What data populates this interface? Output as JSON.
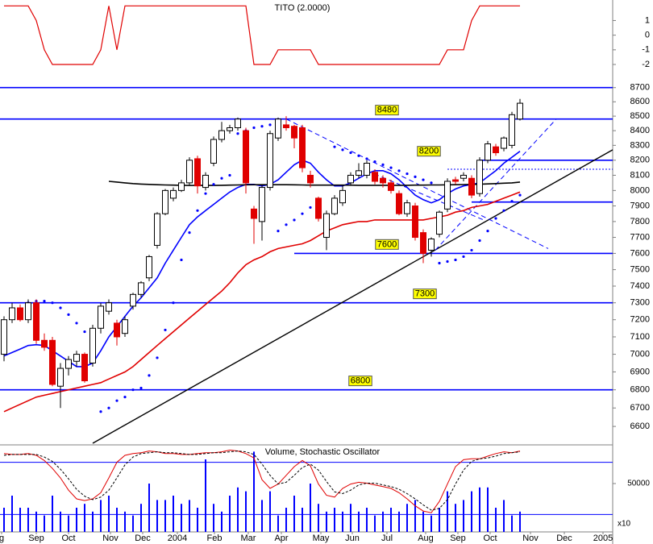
{
  "chart_data": [
    {
      "type": "line",
      "title": "TITO (2.0000)",
      "color": "#e00000",
      "values": [
        2,
        2,
        2,
        2,
        1,
        -1,
        -2,
        -2,
        -2,
        -2,
        -2,
        -2,
        -1,
        2,
        -1,
        2,
        2,
        2,
        2,
        2,
        2,
        2,
        2,
        2,
        2,
        2,
        2,
        2,
        2,
        2,
        2,
        -2,
        -2,
        -2,
        -1,
        -1,
        -1,
        -1,
        -1,
        -2,
        -2,
        -2,
        -2,
        -2,
        -2,
        -2,
        -2,
        -2,
        -2,
        -2,
        -2,
        -2,
        -2,
        -2,
        -2,
        -1,
        -1,
        -1,
        1,
        2,
        2,
        2,
        2,
        2,
        2
      ],
      "xlim": [
        -0.5,
        75.5
      ],
      "ylim": [
        -3.1,
        2.4
      ],
      "yticks": [
        1,
        0,
        -1,
        -2
      ]
    },
    {
      "type": "candlestick",
      "log_scale": true,
      "up_color": "#ffffff",
      "down_color": "#e00000",
      "open": [
        7000,
        7200,
        7270,
        7200,
        7300,
        7080,
        7080,
        6820,
        6920,
        6960,
        7000,
        6950,
        7150,
        7250,
        7180,
        7120,
        7280,
        7350,
        7450,
        7650,
        7850,
        7950,
        8000,
        8050,
        8210,
        8020,
        8180,
        8340,
        8400,
        8420,
        8400,
        7880,
        7800,
        8020,
        8350,
        8440,
        8430,
        8420,
        8100,
        7950,
        7700,
        7850,
        7920,
        8050,
        8100,
        8100,
        8120,
        8080,
        8050,
        7980,
        7850,
        7900,
        7730,
        7620,
        7720,
        7880,
        8070,
        8080,
        8080,
        7980,
        8200,
        8290,
        8280,
        8300,
        8480
      ],
      "high": [
        7220,
        7300,
        7290,
        7320,
        7320,
        7120,
        7100,
        6950,
        6990,
        7020,
        7010,
        7170,
        7300,
        7320,
        7200,
        7220,
        7360,
        7430,
        7590,
        7860,
        8010,
        8020,
        8070,
        8220,
        8230,
        8120,
        8360,
        8460,
        8440,
        8490,
        8420,
        7900,
        8040,
        8400,
        8490,
        8500,
        8440,
        8440,
        8130,
        7960,
        7870,
        7970,
        8030,
        8120,
        8180,
        8200,
        8140,
        8100,
        8070,
        8000,
        7940,
        7920,
        7750,
        7700,
        7870,
        8080,
        8090,
        8120,
        8100,
        8220,
        8330,
        8310,
        8360,
        8530,
        8620
      ],
      "low": [
        6960,
        7180,
        7190,
        7180,
        7060,
        7020,
        6820,
        6700,
        6880,
        6930,
        6840,
        6930,
        7120,
        7230,
        7050,
        7100,
        7260,
        7330,
        7430,
        7630,
        7840,
        7930,
        7990,
        8030,
        7980,
        8000,
        8160,
        8320,
        8380,
        8400,
        7980,
        7660,
        7680,
        8000,
        8330,
        8400,
        8280,
        8120,
        8020,
        7800,
        7620,
        7840,
        7900,
        8030,
        8080,
        8080,
        8040,
        8020,
        7980,
        7840,
        7830,
        7680,
        7540,
        7580,
        7700,
        7860,
        8040,
        8060,
        7950,
        7960,
        8180,
        8230,
        8260,
        8280,
        8470
      ],
      "close": [
        7200,
        7270,
        7200,
        7300,
        7080,
        7040,
        6830,
        6920,
        6970,
        7000,
        6850,
        7150,
        7280,
        7300,
        7100,
        7200,
        7350,
        7420,
        7580,
        7850,
        8000,
        8000,
        8050,
        8200,
        8030,
        8100,
        8340,
        8400,
        8420,
        8480,
        8050,
        7820,
        8020,
        8380,
        8480,
        8420,
        8350,
        8150,
        8050,
        7820,
        7850,
        7950,
        8000,
        8100,
        8130,
        8180,
        8060,
        8050,
        8000,
        7850,
        7920,
        7700,
        7600,
        7690,
        7860,
        8060,
        8060,
        8100,
        7970,
        8200,
        8310,
        8250,
        8350,
        8510,
        8590
      ],
      "overlays": [
        {
          "color": "#0000ff",
          "values": [
            6990,
            7010,
            7030,
            7050,
            7055,
            7050,
            7020,
            6990,
            6960,
            6930,
            6930,
            6950,
            7020,
            7100,
            7160,
            7220,
            7280,
            7330,
            7390,
            7450,
            7540,
            7620,
            7700,
            7780,
            7830,
            7870,
            7910,
            7950,
            7990,
            8020,
            8040,
            8040,
            8030,
            8040,
            8070,
            8120,
            8170,
            8200,
            8180,
            8120,
            8070,
            8030,
            8030,
            8050,
            8080,
            8110,
            8130,
            8130,
            8110,
            8070,
            8020,
            7970,
            7940,
            7920,
            7940,
            7980,
            8010,
            8030,
            8040,
            8050,
            8090,
            8130,
            8180,
            8220,
            8260
          ]
        },
        {
          "color": "#e00000",
          "values": [
            6680,
            6700,
            6720,
            6740,
            6760,
            6770,
            6780,
            6790,
            6800,
            6810,
            6820,
            6830,
            6840,
            6860,
            6880,
            6900,
            6930,
            6970,
            7010,
            7050,
            7090,
            7130,
            7170,
            7210,
            7250,
            7290,
            7330,
            7370,
            7420,
            7480,
            7530,
            7560,
            7580,
            7610,
            7630,
            7640,
            7650,
            7660,
            7680,
            7710,
            7740,
            7760,
            7780,
            7790,
            7800,
            7800,
            7810,
            7810,
            7810,
            7810,
            7810,
            7810,
            7810,
            7820,
            7830,
            7840,
            7860,
            7870,
            7890,
            7900,
            7910,
            7930,
            7950,
            7970,
            7990
          ]
        },
        {
          "color": "#000000",
          "values": [
            null,
            null,
            null,
            null,
            null,
            null,
            null,
            null,
            null,
            null,
            null,
            null,
            null,
            8060,
            8055,
            8050,
            8045,
            8042,
            8040,
            8038,
            8036,
            8035,
            8034,
            8033,
            8033,
            8033,
            8033,
            8034,
            8035,
            8036,
            8037,
            8038,
            8038,
            8038,
            8038,
            8038,
            8037,
            8036,
            8035,
            8035,
            8035,
            8035,
            8035,
            8035,
            8034,
            8034,
            8034,
            8034,
            8034,
            8034,
            8034,
            8035,
            8035,
            8036,
            8036,
            8037,
            8038,
            8039,
            8040,
            8041,
            8043,
            8045,
            8048,
            8050,
            8055
          ]
        }
      ],
      "sar": {
        "color": "#0000ff",
        "values": [
          null,
          null,
          null,
          7300,
          7310,
          7310,
          7300,
          7270,
          7230,
          7180,
          7130,
          null,
          6680,
          6700,
          6740,
          6760,
          6800,
          6810,
          6880,
          6980,
          7140,
          7300,
          7560,
          7730,
          7870,
          7980,
          8040,
          8080,
          8100,
          8380,
          8400,
          8420,
          8430,
          8440,
          7740,
          7780,
          7810,
          7850,
          7890,
          7930,
          null,
          8290,
          8270,
          8250,
          8230,
          8210,
          8190,
          8170,
          8150,
          8130,
          8110,
          8090,
          8070,
          8050,
          7540,
          7550,
          7560,
          7580,
          7620,
          7680,
          7740,
          7820,
          7870,
          7930,
          7970
        ]
      },
      "levels": [
        {
          "value": 8700,
          "color": "#0000ff"
        },
        {
          "value": 8480,
          "label": "8480",
          "color": "#0000ff"
        },
        {
          "value": 8200,
          "label": "8200",
          "from": 59,
          "color": "#0000ff"
        },
        {
          "value": 8140,
          "from": 55,
          "color": "#0000ff",
          "dotted": true
        },
        {
          "value": 7925,
          "from": 58,
          "color": "#0000ff"
        },
        {
          "value": 7600,
          "label": "7600",
          "from": 36,
          "color": "#0000ff"
        },
        {
          "value": 7300,
          "label": "7300",
          "color": "#0000ff"
        },
        {
          "value": 6800,
          "label": "6800",
          "color": "#0000ff"
        }
      ],
      "trendlines": [
        {
          "x": [
            11,
            75.5
          ],
          "y": [
            6510,
            8270
          ],
          "color": "#000000"
        },
        {
          "x": [
            35,
            67.5
          ],
          "y": [
            8480,
            7630
          ],
          "color": "#0000ff",
          "dashed": true
        },
        {
          "x": [
            45,
            59.5
          ],
          "y": [
            8130,
            7810
          ],
          "color": "#0000ff",
          "dashed": true
        },
        {
          "x": [
            53.5,
            68.5
          ],
          "y": [
            7620,
            8480
          ],
          "color": "#0000ff",
          "dashed": true
        }
      ],
      "xlim": [
        -0.5,
        75.5
      ],
      "ylim": [
        6510,
        8750
      ],
      "yticks": [
        6600,
        6700,
        6800,
        6900,
        7000,
        7100,
        7200,
        7300,
        7400,
        7500,
        7600,
        7700,
        7800,
        7900,
        8000,
        8100,
        8200,
        8300,
        8400,
        8500,
        8600,
        8700
      ]
    },
    {
      "type": "volume-stochastic",
      "title": "Volume, Stochastic Oscillator",
      "unit_label": "x10",
      "volume": {
        "color": "#0000ff",
        "values": [
          25000,
          37500,
          25000,
          25000,
          21000,
          17000,
          37500,
          21000,
          17000,
          25000,
          29000,
          21000,
          33000,
          37500,
          25000,
          21000,
          17000,
          29000,
          50000,
          33000,
          33000,
          37500,
          29000,
          33000,
          25000,
          75000,
          29000,
          21000,
          37500,
          46000,
          42000,
          83000,
          33000,
          42000,
          17000,
          25000,
          37500,
          25000,
          50000,
          29000,
          21000,
          25000,
          21000,
          29000,
          21000,
          25000,
          17000,
          21000,
          25000,
          21000,
          29000,
          33000,
          21000,
          17000,
          25000,
          42000,
          29000,
          33000,
          42000,
          46000,
          46000,
          25000,
          33000,
          17000,
          21000
        ]
      },
      "ylim": [
        0,
        90000
      ],
      "yticks": [
        50000
      ],
      "stochastic": [
        {
          "color": "#e00000",
          "values": [
            90,
            89,
            89,
            90,
            88,
            82,
            73,
            62,
            48,
            38,
            36,
            38,
            45,
            62,
            80,
            88,
            90,
            91,
            93,
            92,
            90,
            90,
            89,
            89,
            90,
            91,
            91,
            92,
            94,
            93,
            90,
            85,
            60,
            50,
            55,
            65,
            75,
            82,
            76,
            55,
            42,
            40,
            50,
            55,
            57,
            56,
            54,
            52,
            50,
            45,
            38,
            30,
            24,
            22,
            35,
            55,
            75,
            83,
            84,
            84,
            87,
            90,
            92,
            91,
            93
          ]
        },
        {
          "color": "#000000",
          "dashed": true,
          "values": [
            88,
            89,
            89,
            89,
            89,
            86,
            81,
            72,
            61,
            49,
            41,
            37,
            40,
            48,
            62,
            77,
            86,
            90,
            91,
            92,
            91,
            91,
            90,
            89,
            89,
            90,
            91,
            91,
            92,
            93,
            92,
            89,
            78,
            65,
            55,
            57,
            65,
            74,
            78,
            71,
            58,
            46,
            44,
            48,
            54,
            56,
            56,
            54,
            52,
            49,
            44,
            38,
            31,
            25,
            27,
            37,
            55,
            71,
            81,
            84,
            85,
            87,
            90,
            91,
            92
          ]
        }
      ],
      "stoch_ylim": [
        0,
        100
      ],
      "stoch_levels": [
        80,
        20
      ],
      "xlim": [
        -0.5,
        75.5
      ],
      "xticks": [
        {
          "value": -0.3,
          "label": "g"
        },
        {
          "value": 4,
          "label": "Sep"
        },
        {
          "value": 8,
          "label": "Oct"
        },
        {
          "value": 13.2,
          "label": "Nov"
        },
        {
          "value": 17.2,
          "label": "Dec"
        },
        {
          "value": 21.5,
          "label": "2004"
        },
        {
          "value": 26.1,
          "label": "Feb"
        },
        {
          "value": 30.3,
          "label": "Mar"
        },
        {
          "value": 34.4,
          "label": "Apr"
        },
        {
          "value": 39.3,
          "label": "May"
        },
        {
          "value": 43.2,
          "label": "Jun"
        },
        {
          "value": 47.5,
          "label": "Jul"
        },
        {
          "value": 52.3,
          "label": "Aug"
        },
        {
          "value": 56.3,
          "label": "Sep"
        },
        {
          "value": 60.3,
          "label": "Oct"
        },
        {
          "value": 65.3,
          "label": "Nov"
        },
        {
          "value": 69.5,
          "label": "Dec"
        },
        {
          "value": 74.3,
          "label": "2005"
        }
      ]
    }
  ]
}
